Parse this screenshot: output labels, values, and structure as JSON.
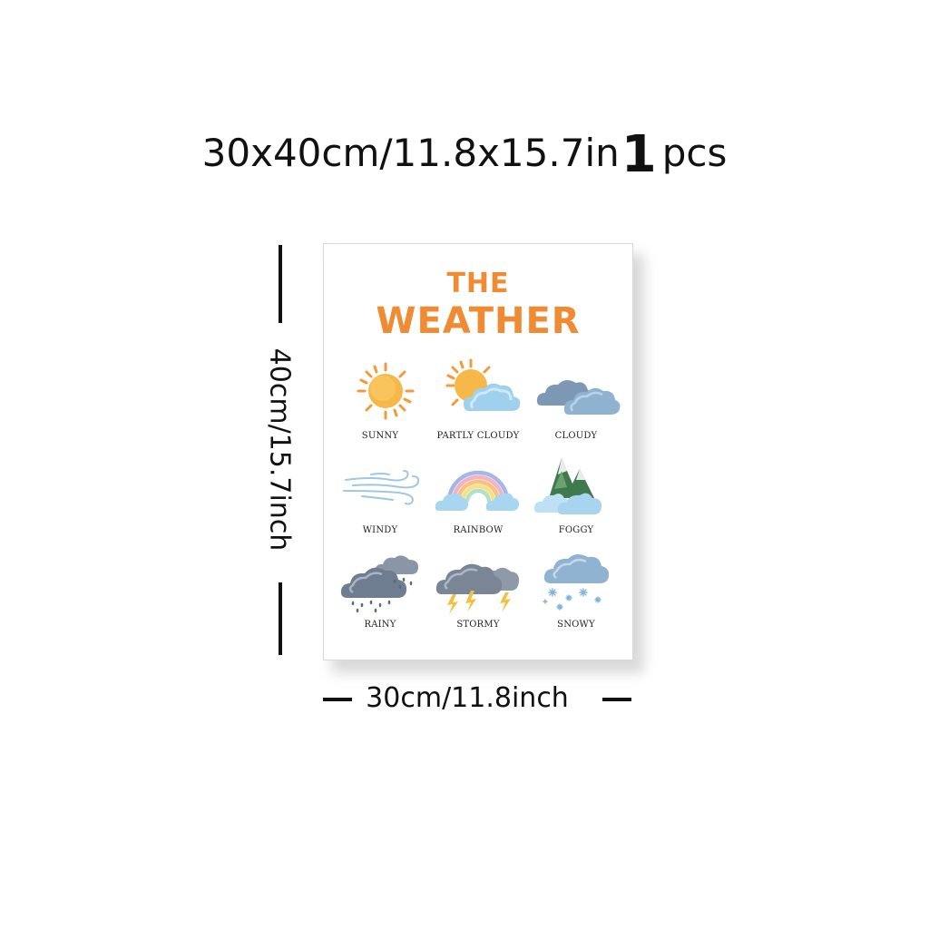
{
  "header": {
    "size_text": "30x40cm/11.8x15.7in",
    "quantity": "1",
    "quantity_unit": "pcs"
  },
  "poster": {
    "title_line1": "THE",
    "title_line2": "WEATHER",
    "title_color": "#f08a33",
    "items": [
      {
        "label": "SUNNY",
        "icon": "sun-icon"
      },
      {
        "label": "PARTLY CLOUDY",
        "icon": "partly-cloudy-icon"
      },
      {
        "label": "CLOUDY",
        "icon": "cloudy-icon"
      },
      {
        "label": "WINDY",
        "icon": "wind-icon"
      },
      {
        "label": "RAINBOW",
        "icon": "rainbow-icon"
      },
      {
        "label": "FOGGY",
        "icon": "fog-icon"
      },
      {
        "label": "RAINY",
        "icon": "rain-icon"
      },
      {
        "label": "STORMY",
        "icon": "storm-icon"
      },
      {
        "label": "SNOWY",
        "icon": "snow-icon"
      }
    ]
  },
  "dimensions": {
    "height_label": "40cm/15.7inch",
    "width_label": "30cm/11.8inch"
  }
}
